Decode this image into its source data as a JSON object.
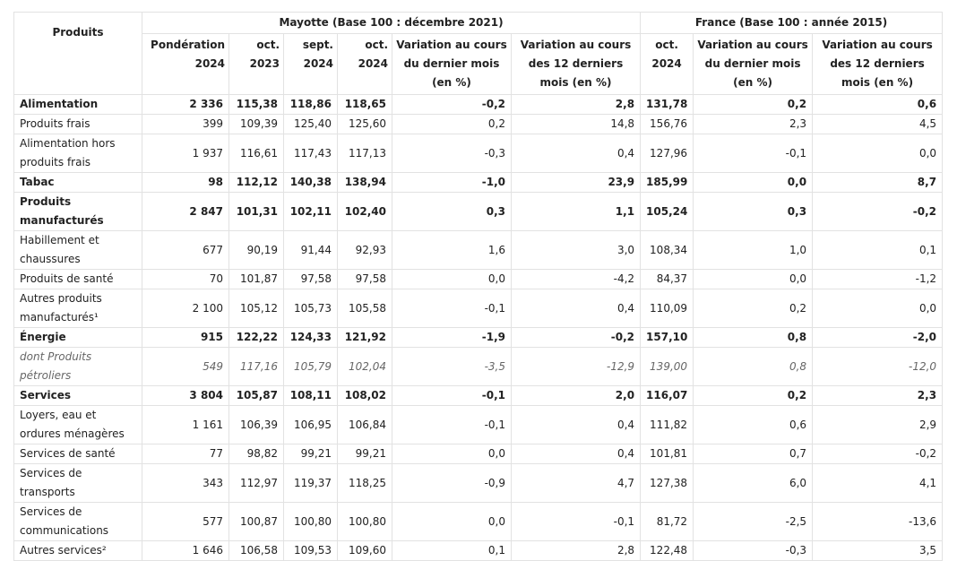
{
  "header": {
    "products_label": "Produits",
    "mayotte_group": "Mayotte (Base 100 : décembre 2021)",
    "france_group": "France (Base 100 : année 2015)",
    "columns": [
      "Pondération 2024",
      "oct. 2023",
      "sept. 2024",
      "oct. 2024",
      "Variation au cours du dernier mois (en %)",
      "Variation au cours des 12 derniers mois (en %)",
      "oct. 2024",
      "Variation au cours du dernier mois (en %)",
      "Variation au cours des 12 derniers mois (en %)"
    ]
  },
  "rows": [
    {
      "label": "Alimentation",
      "style": "bold",
      "values": [
        "2 336",
        "115,38",
        "118,86",
        "118,65",
        "-0,2",
        "2,8",
        "131,78",
        "0,2",
        "0,6"
      ]
    },
    {
      "label": "Produits frais",
      "style": "normal",
      "values": [
        "399",
        "109,39",
        "125,40",
        "125,60",
        "0,2",
        "14,8",
        "156,76",
        "2,3",
        "4,5"
      ]
    },
    {
      "label": "Alimentation hors produits frais",
      "style": "normal",
      "values": [
        "1 937",
        "116,61",
        "117,43",
        "117,13",
        "-0,3",
        "0,4",
        "127,96",
        "-0,1",
        "0,0"
      ]
    },
    {
      "label": "Tabac",
      "style": "bold",
      "values": [
        "98",
        "112,12",
        "140,38",
        "138,94",
        "-1,0",
        "23,9",
        "185,99",
        "0,0",
        "8,7"
      ]
    },
    {
      "label": "Produits manufacturés",
      "style": "bold",
      "values": [
        "2 847",
        "101,31",
        "102,11",
        "102,40",
        "0,3",
        "1,1",
        "105,24",
        "0,3",
        "-0,2"
      ]
    },
    {
      "label": "Habillement et chaussures",
      "style": "normal",
      "values": [
        "677",
        "90,19",
        "91,44",
        "92,93",
        "1,6",
        "3,0",
        "108,34",
        "1,0",
        "0,1"
      ]
    },
    {
      "label": "Produits de santé",
      "style": "normal",
      "values": [
        "70",
        "101,87",
        "97,58",
        "97,58",
        "0,0",
        "-4,2",
        "84,37",
        "0,0",
        "-1,2"
      ]
    },
    {
      "label": "Autres produits manufacturés¹",
      "style": "normal",
      "values": [
        "2 100",
        "105,12",
        "105,73",
        "105,58",
        "-0,1",
        "0,4",
        "110,09",
        "0,2",
        "0,0"
      ]
    },
    {
      "label": "Énergie",
      "style": "bold",
      "values": [
        "915",
        "122,22",
        "124,33",
        "121,92",
        "-1,9",
        "-0,2",
        "157,10",
        "0,8",
        "-2,0"
      ]
    },
    {
      "label": "dont Produits pétroliers",
      "style": "italic",
      "values": [
        "549",
        "117,16",
        "105,79",
        "102,04",
        "-3,5",
        "-12,9",
        "139,00",
        "0,8",
        "-12,0"
      ]
    },
    {
      "label": "Services",
      "style": "bold",
      "values": [
        "3 804",
        "105,87",
        "108,11",
        "108,02",
        "-0,1",
        "2,0",
        "116,07",
        "0,2",
        "2,3"
      ]
    },
    {
      "label": "Loyers, eau et ordures ménagères",
      "style": "normal",
      "values": [
        "1 161",
        "106,39",
        "106,95",
        "106,84",
        "-0,1",
        "0,4",
        "111,82",
        "0,6",
        "2,9"
      ]
    },
    {
      "label": "Services de santé",
      "style": "normal",
      "values": [
        "77",
        "98,82",
        "99,21",
        "99,21",
        "0,0",
        "0,4",
        "101,81",
        "0,7",
        "-0,2"
      ]
    },
    {
      "label": "Services de transports",
      "style": "normal",
      "values": [
        "343",
        "112,97",
        "119,37",
        "118,25",
        "-0,9",
        "4,7",
        "127,38",
        "6,0",
        "4,1"
      ]
    },
    {
      "label": "Services de communications",
      "style": "normal",
      "values": [
        "577",
        "100,87",
        "100,80",
        "100,80",
        "0,0",
        "-0,1",
        "81,72",
        "-2,5",
        "-13,6"
      ]
    },
    {
      "label": "Autres services²",
      "style": "normal",
      "values": [
        "1 646",
        "106,58",
        "109,53",
        "109,60",
        "0,1",
        "2,8",
        "122,48",
        "-0,3",
        "3,5"
      ]
    }
  ]
}
